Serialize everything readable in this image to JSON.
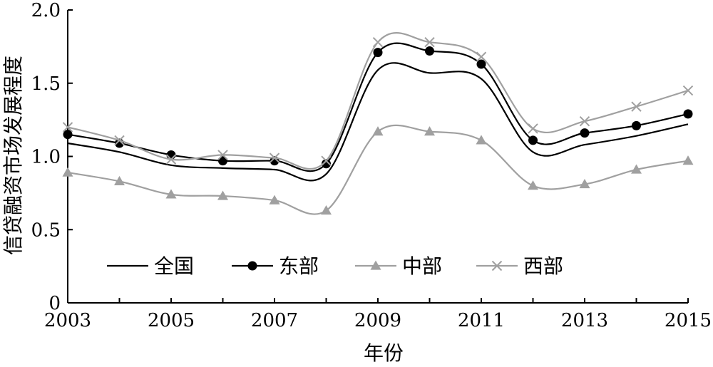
{
  "chart_data": {
    "type": "line",
    "title": "",
    "xlabel": "年份",
    "ylabel": "信贷融资市场发展程度",
    "x": [
      2003,
      2004,
      2005,
      2006,
      2007,
      2008,
      2009,
      2010,
      2011,
      2012,
      2013,
      2014,
      2015
    ],
    "x_ticks": [
      "2003",
      "2005",
      "2007",
      "2009",
      "2011",
      "2013",
      "2015"
    ],
    "y_ticks": [
      "0",
      "0.5",
      "1.0",
      "1.5",
      "2.0"
    ],
    "xlim": [
      2003,
      2015
    ],
    "ylim": [
      0,
      2.0
    ],
    "grid": false,
    "legend_position": "inside-bottom-left",
    "series": [
      {
        "name": "全国",
        "marker": "none",
        "color": "#000000",
        "values": [
          1.09,
          1.03,
          0.94,
          0.92,
          0.91,
          0.88,
          1.59,
          1.57,
          1.53,
          1.03,
          1.08,
          1.14,
          1.22
        ]
      },
      {
        "name": "东部",
        "marker": "circle",
        "color": "#000000",
        "values": [
          1.15,
          1.09,
          1.01,
          0.97,
          0.97,
          0.95,
          1.71,
          1.72,
          1.63,
          1.11,
          1.16,
          1.21,
          1.29
        ]
      },
      {
        "name": "中部",
        "marker": "triangle",
        "color": "#a0a0a0",
        "values": [
          0.89,
          0.83,
          0.74,
          0.73,
          0.7,
          0.63,
          1.17,
          1.17,
          1.11,
          0.8,
          0.81,
          0.91,
          0.97
        ]
      },
      {
        "name": "西部",
        "marker": "x",
        "color": "#a0a0a0",
        "values": [
          1.2,
          1.11,
          0.98,
          1.01,
          0.99,
          0.97,
          1.78,
          1.78,
          1.68,
          1.19,
          1.24,
          1.34,
          1.45
        ]
      }
    ]
  }
}
